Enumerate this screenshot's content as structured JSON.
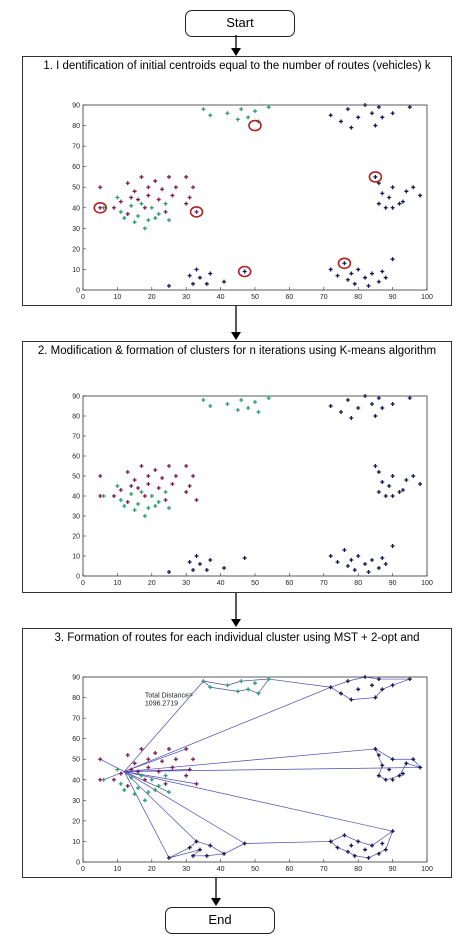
{
  "flow": {
    "start_label": "Start",
    "end_label": "End",
    "steps": [
      {
        "title": "1. I dentification of initial centroids equal to the number of routes (vehicles) k"
      },
      {
        "title": "2. Modification & formation of clusters for n iterations using K-means algorithm"
      },
      {
        "title": "3. Formation of routes for each individual cluster using MST + 2-opt and"
      }
    ]
  },
  "colors": {
    "purple": "#7a1f55",
    "green": "#2e9e6e",
    "navy": "#17174f",
    "centroid_circle": "#b22222",
    "route_line": "#4a4ab0",
    "axis": "#333333"
  },
  "chart_data": [
    {
      "type": "scatter",
      "xlim": [
        0,
        100
      ],
      "ylim": [
        0,
        90
      ],
      "xticks": [
        "0",
        "10",
        "20",
        "30",
        "40",
        "50",
        "60",
        "70",
        "80",
        "90",
        "100"
      ],
      "yticks": [
        "0",
        "10",
        "20",
        "30",
        "40",
        "50",
        "60",
        "70",
        "80",
        "90"
      ],
      "centroids": [
        [
          5,
          40
        ],
        [
          33,
          38
        ],
        [
          50,
          80
        ],
        [
          47,
          9
        ],
        [
          76,
          13
        ],
        [
          85,
          55
        ]
      ],
      "annotation": ""
    },
    {
      "type": "scatter",
      "xlim": [
        0,
        100
      ],
      "ylim": [
        0,
        90
      ],
      "xticks": [
        "0",
        "10",
        "20",
        "30",
        "40",
        "50",
        "60",
        "70",
        "80",
        "90",
        "100"
      ],
      "yticks": [
        "0",
        "10",
        "20",
        "30",
        "40",
        "50",
        "60",
        "70",
        "80",
        "90"
      ],
      "annotation": ""
    },
    {
      "type": "scatter",
      "xlim": [
        0,
        100
      ],
      "ylim": [
        0,
        90
      ],
      "xticks": [
        "0",
        "10",
        "20",
        "30",
        "40",
        "50",
        "60",
        "70",
        "80",
        "90",
        "100"
      ],
      "yticks": [
        "0",
        "10",
        "20",
        "30",
        "40",
        "50",
        "60",
        "70",
        "80",
        "90"
      ],
      "annotation": "Total Distance= 1096.2719",
      "depot": [
        12,
        44
      ]
    }
  ],
  "points": {
    "purple": [
      [
        5,
        50
      ],
      [
        13,
        52
      ],
      [
        15,
        48
      ],
      [
        17,
        55
      ],
      [
        19,
        50
      ],
      [
        21,
        53
      ],
      [
        23,
        49
      ],
      [
        25,
        55
      ],
      [
        27,
        50
      ],
      [
        30,
        55
      ],
      [
        32,
        50
      ],
      [
        11,
        43
      ],
      [
        14,
        45
      ],
      [
        16,
        44
      ],
      [
        19,
        46
      ],
      [
        22,
        44
      ],
      [
        26,
        46
      ],
      [
        31,
        45
      ],
      [
        9,
        40
      ],
      [
        13,
        37
      ],
      [
        18,
        40
      ],
      [
        24,
        38
      ],
      [
        30,
        42
      ],
      [
        33,
        38
      ],
      [
        5,
        40
      ]
    ],
    "green": [
      [
        6,
        40
      ],
      [
        10,
        45
      ],
      [
        11,
        38
      ],
      [
        14,
        41
      ],
      [
        16,
        36
      ],
      [
        17,
        42
      ],
      [
        19,
        34
      ],
      [
        20,
        40
      ],
      [
        22,
        37
      ],
      [
        24,
        42
      ],
      [
        15,
        33
      ],
      [
        18,
        30
      ],
      [
        21,
        35
      ],
      [
        12,
        35
      ],
      [
        25,
        34
      ],
      [
        35,
        88
      ],
      [
        37,
        85
      ],
      [
        42,
        86
      ],
      [
        45,
        83
      ],
      [
        46,
        88
      ],
      [
        48,
        84
      ],
      [
        50,
        87
      ],
      [
        51,
        82
      ],
      [
        54,
        89
      ]
    ],
    "navy": [
      [
        72,
        85
      ],
      [
        75,
        82
      ],
      [
        77,
        88
      ],
      [
        78,
        79
      ],
      [
        80,
        84
      ],
      [
        82,
        90
      ],
      [
        84,
        86
      ],
      [
        85,
        80
      ],
      [
        86,
        89
      ],
      [
        87,
        84
      ],
      [
        90,
        86
      ],
      [
        95,
        89
      ],
      [
        85,
        55
      ],
      [
        86,
        52
      ],
      [
        87,
        47
      ],
      [
        89,
        45
      ],
      [
        90,
        50
      ],
      [
        92,
        42
      ],
      [
        94,
        48
      ],
      [
        96,
        50
      ],
      [
        98,
        46
      ],
      [
        86,
        42
      ],
      [
        90,
        40
      ],
      [
        93,
        43
      ],
      [
        88,
        40
      ],
      [
        25,
        2
      ],
      [
        31,
        7
      ],
      [
        32,
        3
      ],
      [
        33,
        10
      ],
      [
        34,
        6
      ],
      [
        36,
        3
      ],
      [
        37,
        8
      ],
      [
        41,
        4
      ],
      [
        47,
        9
      ],
      [
        72,
        10
      ],
      [
        74,
        7
      ],
      [
        76,
        13
      ],
      [
        77,
        5
      ],
      [
        78,
        8
      ],
      [
        79,
        3
      ],
      [
        80,
        10
      ],
      [
        82,
        6
      ],
      [
        83,
        2
      ],
      [
        84,
        8
      ],
      [
        86,
        4
      ],
      [
        87,
        9
      ],
      [
        88,
        6
      ],
      [
        90,
        15
      ]
    ]
  }
}
